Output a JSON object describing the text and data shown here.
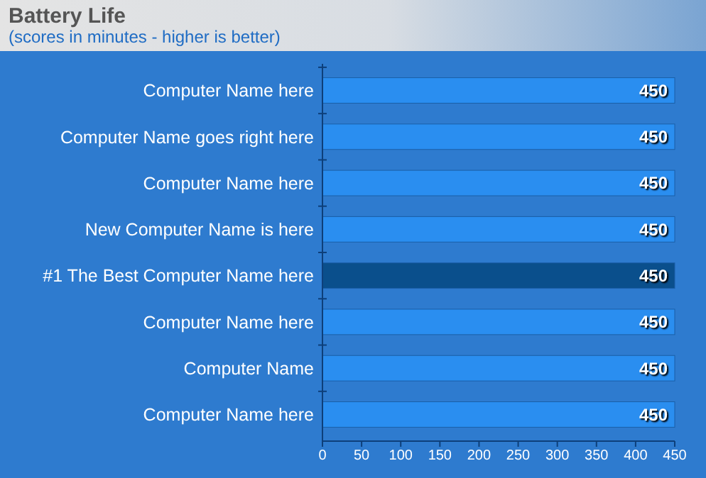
{
  "chart_data": {
    "type": "bar",
    "orientation": "horizontal",
    "title": "Battery Life",
    "subtitle": "(scores in minutes - higher is better)",
    "categories": [
      "Computer Name here",
      "Computer Name goes right here",
      "Computer Name here",
      "New Computer Name is here",
      "#1 The Best Computer Name here",
      "Computer Name here",
      "Computer Name",
      "Computer Name here"
    ],
    "values": [
      450,
      450,
      450,
      450,
      450,
      450,
      450,
      450
    ],
    "colors": [
      "#2a8ef0",
      "#2a8ef0",
      "#2a8ef0",
      "#2a8ef0",
      "#0a4f8c",
      "#2a8ef0",
      "#2a8ef0",
      "#2a8ef0"
    ],
    "xlim": [
      0,
      450
    ],
    "xticks": [
      0,
      50,
      100,
      150,
      200,
      250,
      300,
      350,
      400,
      450
    ],
    "data_labels": true
  }
}
